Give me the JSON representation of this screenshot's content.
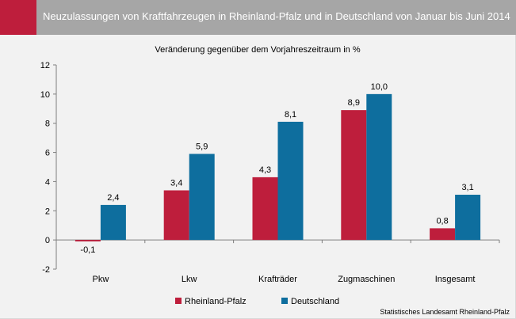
{
  "header": {
    "title": "Neuzulassungen von Kraftfahrzeugen in Rheinland-Pfalz und in Deutschland von Januar bis Juni 2014"
  },
  "colors": {
    "accent": "#be1e3c",
    "header_bg": "#a6a6a6",
    "background": "#f2f2f2",
    "series_rlp": "#be1e3c",
    "series_de": "#0e6e9e"
  },
  "source": "Statistisches Landesamt Rheinland-Pfalz",
  "chart_data": {
    "type": "bar",
    "subtitle": "Veränderung gegenüber dem Vorjahreszeitraum in %",
    "categories": [
      "Pkw",
      "Lkw",
      "Krafträder",
      "Zugmaschinen",
      "Insgesamt"
    ],
    "series": [
      {
        "name": "Rheinland-Pfalz",
        "values": [
          -0.1,
          3.4,
          4.3,
          8.9,
          0.8
        ],
        "labels": [
          "-0,1",
          "3,4",
          "4,3",
          "8,9",
          "0,8"
        ]
      },
      {
        "name": "Deutschland",
        "values": [
          2.4,
          5.9,
          8.1,
          10.0,
          3.1
        ],
        "labels": [
          "2,4",
          "5,9",
          "8,1",
          "10,0",
          "3,1"
        ]
      }
    ],
    "ylim": [
      -2,
      12
    ],
    "yticks": [
      -2,
      0,
      2,
      4,
      6,
      8,
      10,
      12
    ],
    "ytick_labels": [
      "-2",
      "0",
      "2",
      "4",
      "6",
      "8",
      "10",
      "12"
    ],
    "grid": false,
    "legend_position": "bottom"
  }
}
